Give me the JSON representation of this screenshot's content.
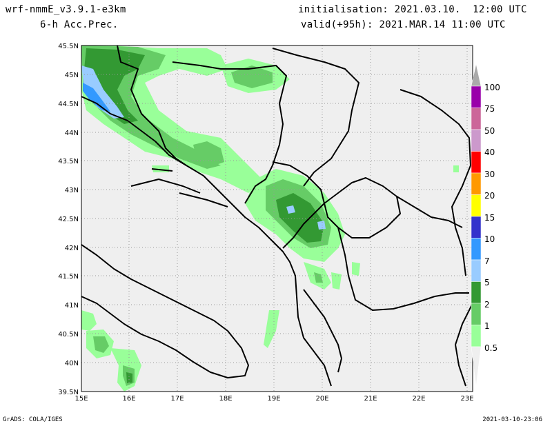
{
  "header": {
    "model": "wrf-nmmE_v3.9.1-e3km",
    "field": "6-h Acc.Prec.",
    "initialisation": "initialisation: 2021.03.10.  12:00 UTC",
    "valid": "valid(+95h): 2021.MAR.14 11:00 UTC"
  },
  "footer": {
    "left": "GrADS: COLA/IGES",
    "right": "2021-03-10-23:06"
  },
  "map": {
    "lat_labels": [
      "45.5N",
      "45N",
      "44.5N",
      "44N",
      "43.5N",
      "43N",
      "42.5N",
      "42N",
      "41.5N",
      "41N",
      "40.5N",
      "40N",
      "39.5N"
    ],
    "lon_labels": [
      "15E",
      "16E",
      "17E",
      "18E",
      "19E",
      "20E",
      "21E",
      "22E",
      "23E"
    ],
    "background_color": "#efefef",
    "border_color": "#000000",
    "grid_color": "#999999"
  },
  "colorbar": {
    "labels": [
      "100",
      "75",
      "50",
      "40",
      "30",
      "20",
      "15",
      "10",
      "7",
      "5",
      "2",
      "1",
      "0.5"
    ],
    "colors": [
      "#9900aa",
      "#cc6699",
      "#cc99cc",
      "#ff0000",
      "#ff9900",
      "#ffff00",
      "#3333cc",
      "#3399ff",
      "#99ccff",
      "#339933",
      "#66cc66",
      "#99ff99"
    ],
    "top_color": "#aaaaaa"
  },
  "precip_colors": {
    "light": "#99ff99",
    "medium": "#66cc66",
    "heavy": "#339933",
    "very_heavy": "#99ccff",
    "extreme": "#3399ff"
  }
}
